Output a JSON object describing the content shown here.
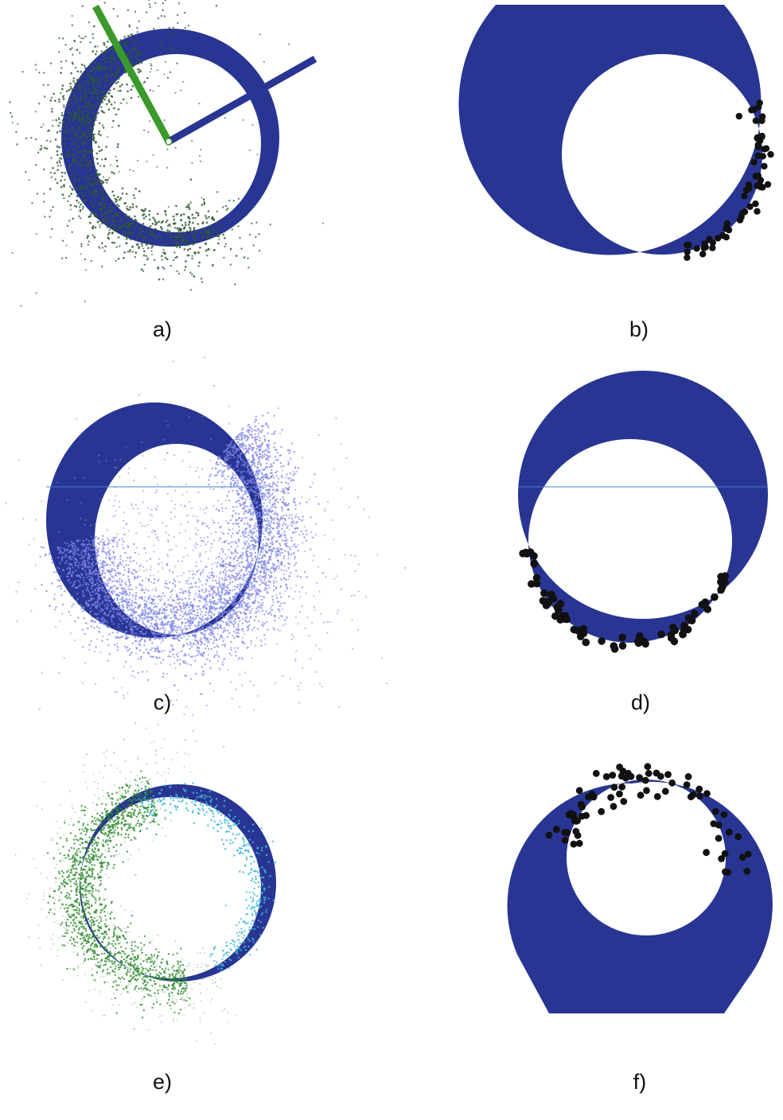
{
  "colors": {
    "ring": "#283593",
    "ring_dark": "#1f2a85",
    "seam": "#3f7fd0",
    "points_dark_green": "#2f5a2f",
    "points_green": "#2e8b2e",
    "points_light_blue": "#7f86e6",
    "points_cyan": "#3fb8d8",
    "points_black": "#111111",
    "axis_green": "#3a9a2a",
    "axis_blue": "#283593",
    "background": "#ffffff"
  },
  "panels": [
    {
      "id": "a",
      "label": "a)"
    },
    {
      "id": "b",
      "label": "b)"
    },
    {
      "id": "c",
      "label": "c)"
    },
    {
      "id": "d",
      "label": "d)"
    },
    {
      "id": "e",
      "label": "e)"
    },
    {
      "id": "f",
      "label": "f)"
    }
  ]
}
